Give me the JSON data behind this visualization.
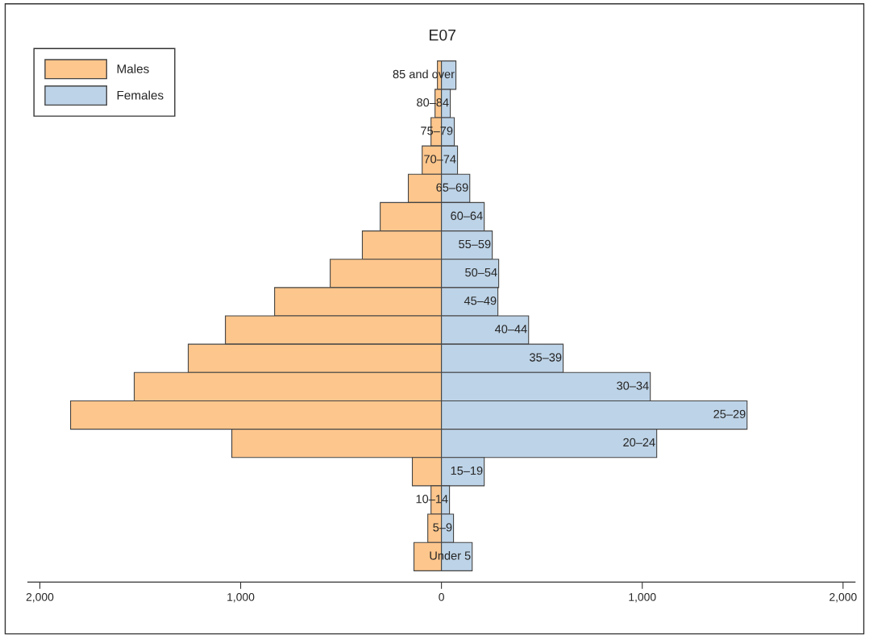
{
  "chart_data": {
    "type": "bar",
    "orientation": "horizontal",
    "title": "E07",
    "categories": [
      "85 and over",
      "80–84",
      "75–79",
      "70–74",
      "65–69",
      "60–64",
      "55–59",
      "50–54",
      "45–49",
      "40–44",
      "35–39",
      "30–34",
      "25–29",
      "20–24",
      "15–19",
      "10–14",
      "5–9",
      "Under 5"
    ],
    "series": [
      {
        "name": "Males",
        "color": "#fdc68c",
        "values": [
          -20,
          -32,
          -52,
          -96,
          -165,
          -305,
          -394,
          -554,
          -831,
          -1076,
          -1261,
          -1530,
          -1847,
          -1044,
          -145,
          -52,
          -68,
          -137
        ]
      },
      {
        "name": "Females",
        "color": "#bdd3e7",
        "values": [
          72,
          44,
          64,
          80,
          141,
          213,
          253,
          285,
          281,
          434,
          606,
          1040,
          1522,
          1072,
          213,
          40,
          60,
          153
        ]
      }
    ],
    "xlim": [
      -2060,
      2060
    ],
    "xticks": [
      {
        "value": -2000,
        "label": "2,000"
      },
      {
        "value": -1000,
        "label": "1,000"
      },
      0,
      {
        "value": 1000,
        "label": "1,000"
      },
      {
        "value": 2000,
        "label": "2,000"
      }
    ],
    "legend": "top left",
    "stacked": true,
    "grid": false
  }
}
